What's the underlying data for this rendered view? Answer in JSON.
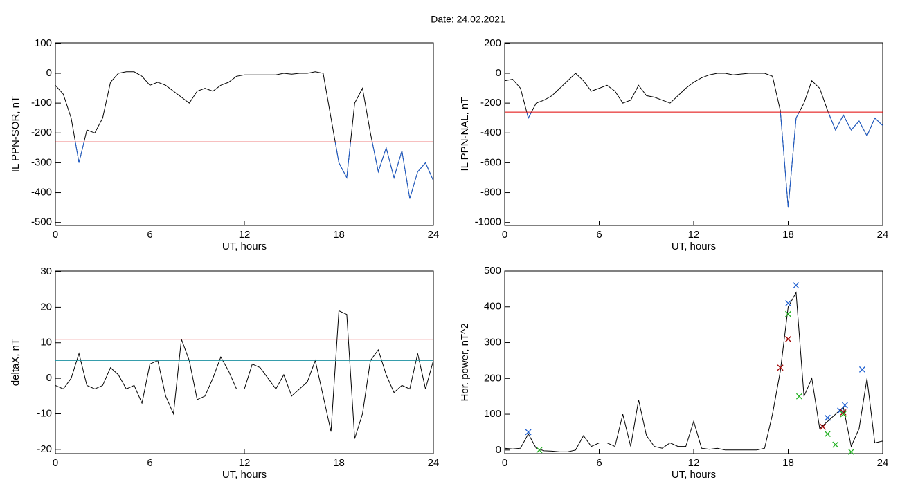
{
  "title": "Date:  24.02.2021",
  "chart_data": [
    {
      "type": "line",
      "ylabel": "IL PPN-SOR, nT",
      "xlabel": "UT, hours",
      "xlim": [
        0,
        24
      ],
      "xticks": [
        0,
        6,
        12,
        18,
        24
      ],
      "ylim": [
        -510,
        102
      ],
      "yticks": [
        -500,
        -400,
        -300,
        -200,
        -100,
        0,
        100
      ],
      "x": [
        0,
        0.5,
        1,
        1.5,
        2,
        2.5,
        3,
        3.5,
        4,
        4.5,
        5,
        5.5,
        6,
        6.5,
        7,
        7.5,
        8,
        8.5,
        9,
        9.5,
        10,
        10.5,
        11,
        11.5,
        12,
        12.5,
        13,
        13.5,
        14,
        14.5,
        15,
        15.5,
        16,
        16.5,
        17,
        17.5,
        18,
        18.5,
        19,
        19.5,
        20,
        20.5,
        21,
        21.5,
        22,
        22.5,
        23,
        23.5,
        24
      ],
      "values": [
        -40,
        -70,
        -150,
        -300,
        -190,
        -200,
        -150,
        -30,
        0,
        5,
        5,
        -10,
        -40,
        -30,
        -40,
        -60,
        -80,
        -100,
        -60,
        -50,
        -60,
        -40,
        -30,
        -10,
        -5,
        -5,
        -5,
        -5,
        -5,
        0,
        -3,
        0,
        0,
        5,
        0,
        -150,
        -300,
        -350,
        -100,
        -50,
        -200,
        -330,
        -250,
        -350,
        -260,
        -420,
        -330,
        -300,
        -360
      ],
      "color": "#000000",
      "below_color": "#1f5fd0",
      "hlines": [
        {
          "value": -230,
          "color": "#e00000"
        }
      ]
    },
    {
      "type": "line",
      "ylabel": "IL PPN-NAL, nT",
      "xlabel": "UT, hours",
      "xlim": [
        0,
        24
      ],
      "xticks": [
        0,
        6,
        12,
        18,
        24
      ],
      "ylim": [
        -1020,
        204
      ],
      "yticks": [
        -1000,
        -800,
        -600,
        -400,
        -200,
        0,
        200
      ],
      "x": [
        0,
        0.5,
        1,
        1.5,
        2,
        2.5,
        3,
        3.5,
        4,
        4.5,
        5,
        5.5,
        6,
        6.5,
        7,
        7.5,
        8,
        8.5,
        9,
        9.5,
        10,
        10.5,
        11,
        11.5,
        12,
        12.5,
        13,
        13.5,
        14,
        14.5,
        15,
        15.5,
        16,
        16.5,
        17,
        17.5,
        18,
        18.5,
        19,
        19.5,
        20,
        20.5,
        21,
        21.5,
        22,
        22.5,
        23,
        23.5,
        24
      ],
      "values": [
        -50,
        -40,
        -100,
        -300,
        -200,
        -180,
        -150,
        -100,
        -50,
        0,
        -50,
        -120,
        -100,
        -80,
        -120,
        -200,
        -180,
        -80,
        -150,
        -160,
        -180,
        -200,
        -150,
        -100,
        -60,
        -30,
        -10,
        0,
        0,
        -10,
        -5,
        0,
        0,
        0,
        -20,
        -250,
        -900,
        -300,
        -200,
        -50,
        -100,
        -250,
        -380,
        -280,
        -380,
        -320,
        -420,
        -300,
        -350
      ],
      "color": "#000000",
      "below_color": "#1f5fd0",
      "hlines": [
        {
          "value": -260,
          "color": "#e00000"
        }
      ]
    },
    {
      "type": "line",
      "ylabel": "deltaX, nT",
      "xlabel": "UT, hours",
      "xlim": [
        0,
        24
      ],
      "xticks": [
        0,
        6,
        12,
        18,
        24
      ],
      "ylim": [
        -21.2,
        30.2
      ],
      "yticks": [
        -20,
        -10,
        0,
        10,
        20,
        30
      ],
      "x": [
        0,
        0.5,
        1,
        1.5,
        2,
        2.5,
        3,
        3.5,
        4,
        4.5,
        5,
        5.5,
        6,
        6.5,
        7,
        7.5,
        8,
        8.5,
        9,
        9.5,
        10,
        10.5,
        11,
        11.5,
        12,
        12.5,
        13,
        13.5,
        14,
        14.5,
        15,
        15.5,
        16,
        16.5,
        17,
        17.5,
        18,
        18.5,
        19,
        19.5,
        20,
        20.5,
        21,
        21.5,
        22,
        22.5,
        23,
        23.5,
        24
      ],
      "values": [
        -2,
        -3,
        0,
        7,
        -2,
        -3,
        -2,
        3,
        1,
        -3,
        -2,
        -7,
        4,
        5,
        -5,
        -10,
        11,
        5,
        -6,
        -5,
        0,
        6,
        2,
        -3,
        -3,
        4,
        3,
        0,
        -3,
        1,
        -5,
        -3,
        -1,
        5,
        -5,
        -15,
        19,
        18,
        -17,
        -10,
        5,
        8,
        1,
        -4,
        -2,
        -3,
        7,
        -3,
        5
      ],
      "color": "#000000",
      "hlines": [
        {
          "value": 11,
          "color": "#e00000"
        },
        {
          "value": 5,
          "color": "#1a8fa0"
        }
      ]
    },
    {
      "type": "line",
      "ylabel": "Hor. power, nT^2",
      "xlabel": "UT, hours",
      "xlim": [
        0,
        24
      ],
      "xticks": [
        0,
        6,
        12,
        18,
        24
      ],
      "ylim": [
        -10,
        500
      ],
      "yticks": [
        0,
        100,
        200,
        300,
        400,
        500
      ],
      "x": [
        0,
        0.5,
        1,
        1.5,
        2,
        2.5,
        3,
        3.5,
        4,
        4.5,
        5,
        5.5,
        6,
        6.5,
        7,
        7.5,
        8,
        8.5,
        9,
        9.5,
        10,
        10.5,
        11,
        11.5,
        12,
        12.5,
        13,
        13.5,
        14,
        14.5,
        15,
        15.5,
        16,
        16.5,
        17,
        17.5,
        18,
        18.5,
        19,
        19.5,
        20,
        20.5,
        21,
        21.5,
        22,
        22.5,
        23,
        23.5,
        24
      ],
      "values": [
        5,
        3,
        5,
        45,
        5,
        -2,
        -3,
        -5,
        -5,
        0,
        40,
        10,
        20,
        20,
        10,
        100,
        10,
        140,
        40,
        10,
        5,
        20,
        10,
        10,
        80,
        5,
        2,
        5,
        0,
        0,
        0,
        0,
        0,
        5,
        100,
        220,
        400,
        440,
        150,
        200,
        60,
        80,
        100,
        120,
        10,
        60,
        200,
        20,
        25
      ],
      "color": "#000000",
      "hlines": [
        {
          "value": 20,
          "color": "#e00000"
        }
      ],
      "markers": [
        {
          "color": "#2060d0",
          "x": [
            1.5,
            18,
            18.5,
            20.5,
            21.3,
            21.6,
            22.7
          ],
          "values": [
            50,
            410,
            460,
            90,
            110,
            125,
            225
          ]
        },
        {
          "color": "#a00000",
          "x": [
            17.5,
            18,
            20.2,
            21.5
          ],
          "values": [
            230,
            310,
            65,
            105
          ]
        },
        {
          "color": "#20b020",
          "x": [
            2.2,
            18,
            18.7,
            20.5,
            21,
            21.5,
            22
          ],
          "values": [
            0,
            380,
            150,
            45,
            15,
            100,
            -5
          ]
        }
      ]
    }
  ]
}
